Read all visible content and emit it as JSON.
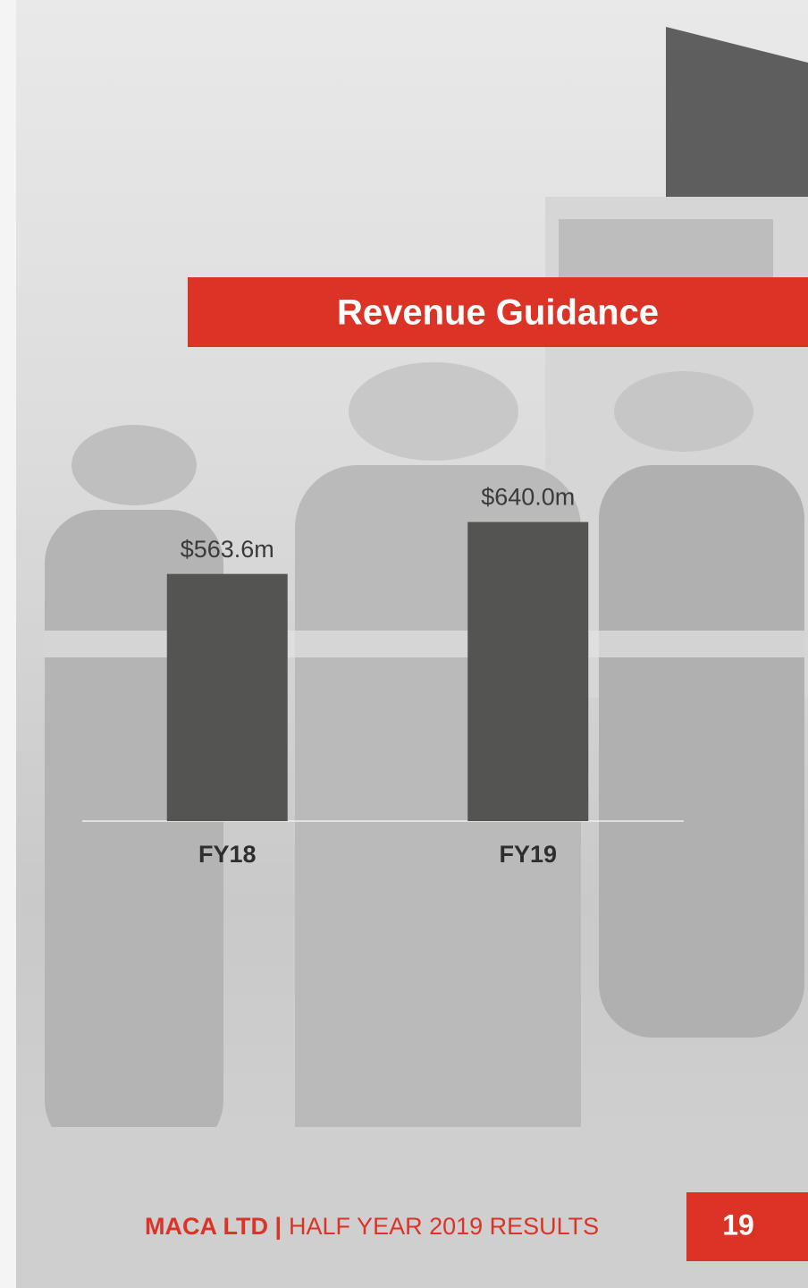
{
  "chart_data": {
    "type": "bar",
    "title": "Revenue Guidance",
    "categories": [
      "FY18",
      "FY19"
    ],
    "values": [
      563.6,
      640.0
    ],
    "value_labels": [
      "$563.6m",
      "$640.0m"
    ],
    "color": "#545553",
    "ylim": [
      200,
      700
    ]
  },
  "footer": {
    "company": "MACA LTD |",
    "text": "HALF YEAR 2019 RESULTS",
    "page": "19"
  }
}
